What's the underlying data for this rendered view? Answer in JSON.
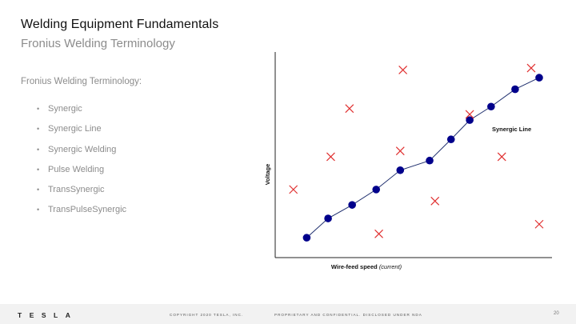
{
  "slide": {
    "title": "Welding Equipment Fundamentals",
    "subtitle": "Fronius Welding Terminology",
    "section_heading": "Fronius Welding Terminology:",
    "bullets": [
      "Synergic",
      "Synergic Line",
      "Synergic Welding",
      "Pulse Welding",
      "TransSynergic",
      "TransPulseSynergic"
    ],
    "bullet_glyph": "•"
  },
  "chart_data": {
    "type": "scatter",
    "xlabel": "Wire-feed speed",
    "xlabel_suffix": "(current)",
    "ylabel": "Voltage",
    "line_label": "Synergic Line",
    "colors": {
      "line": "#1f2f6e",
      "points": "#00008b",
      "x_markers": "#e03030",
      "axes": "#222222"
    },
    "synergic_line": [
      {
        "x": 0.1,
        "y": 0.07
      },
      {
        "x": 0.18,
        "y": 0.17
      },
      {
        "x": 0.27,
        "y": 0.24
      },
      {
        "x": 0.36,
        "y": 0.32
      },
      {
        "x": 0.45,
        "y": 0.42
      },
      {
        "x": 0.56,
        "y": 0.47
      },
      {
        "x": 0.64,
        "y": 0.58
      },
      {
        "x": 0.71,
        "y": 0.68
      },
      {
        "x": 0.79,
        "y": 0.75
      },
      {
        "x": 0.88,
        "y": 0.84
      },
      {
        "x": 0.97,
        "y": 0.9
      }
    ],
    "x_markers": [
      {
        "x": 0.05,
        "y": 0.32
      },
      {
        "x": 0.19,
        "y": 0.49
      },
      {
        "x": 0.26,
        "y": 0.74
      },
      {
        "x": 0.45,
        "y": 0.52
      },
      {
        "x": 0.46,
        "y": 0.94
      },
      {
        "x": 0.37,
        "y": 0.09
      },
      {
        "x": 0.58,
        "y": 0.26
      },
      {
        "x": 0.71,
        "y": 0.71
      },
      {
        "x": 0.83,
        "y": 0.49
      },
      {
        "x": 0.94,
        "y": 0.95
      },
      {
        "x": 0.97,
        "y": 0.14
      }
    ]
  },
  "footer": {
    "logo": "TESLA",
    "copyright": "COPYRIGHT 2020 TESLA, INC.",
    "confidential": "PROPRIETARY AND CONFIDENTIAL. DISCLOSED UNDER NDA",
    "page_number": "20"
  }
}
